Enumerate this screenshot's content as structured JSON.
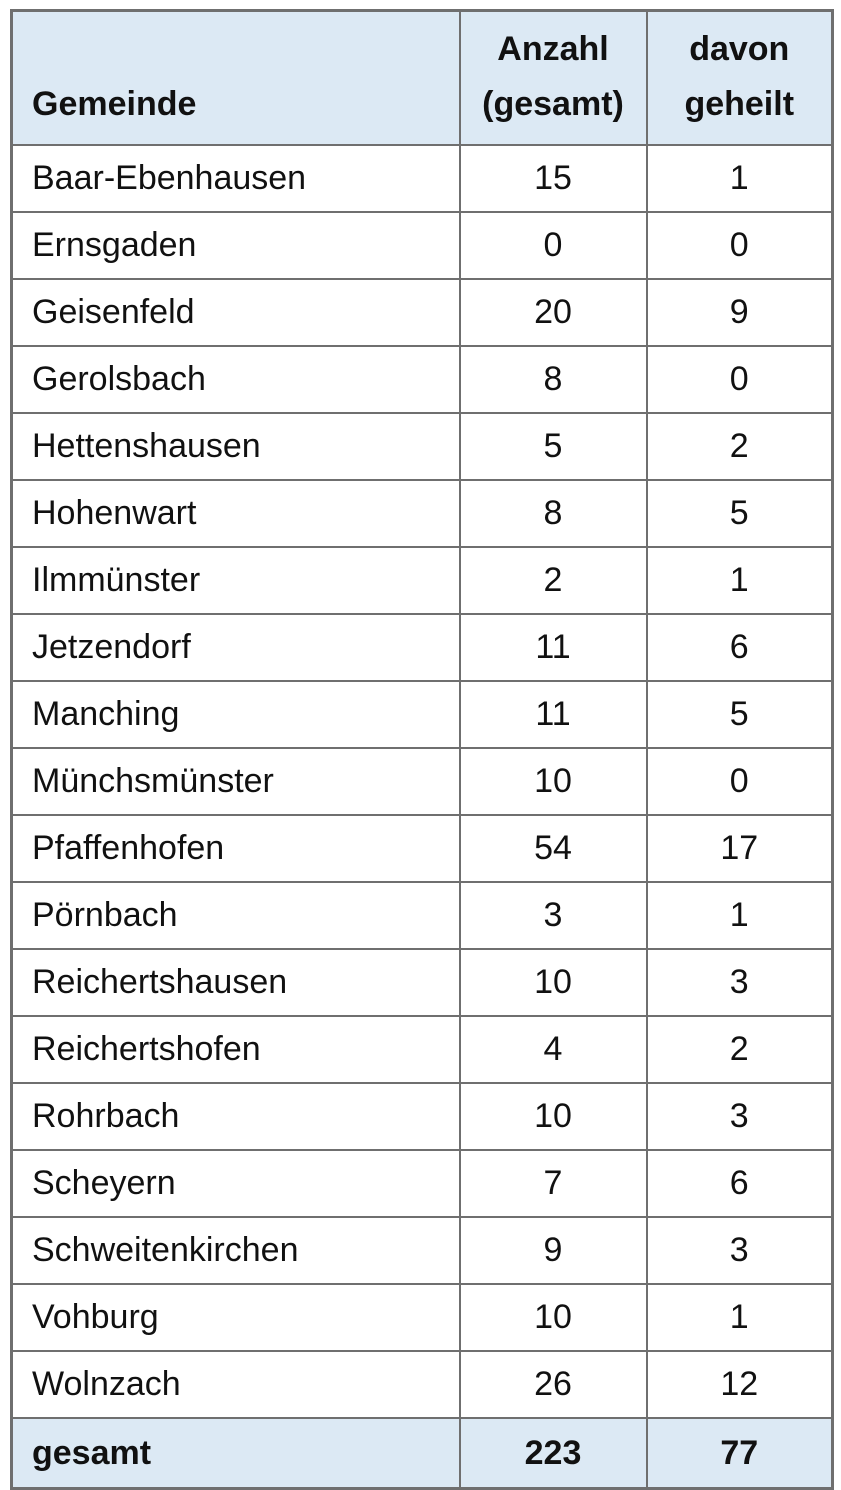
{
  "chart_data": {
    "type": "table",
    "columns": [
      {
        "key": "gemeinde",
        "lines": [
          "Gemeinde"
        ]
      },
      {
        "key": "anzahl_gesamt",
        "lines": [
          "Anzahl",
          "(gesamt)"
        ]
      },
      {
        "key": "davon_geheilt",
        "lines": [
          "davon",
          "geheilt"
        ]
      }
    ],
    "rows": [
      {
        "gemeinde": "Baar-Ebenhausen",
        "anzahl": "15",
        "geheilt": "1"
      },
      {
        "gemeinde": "Ernsgaden",
        "anzahl": "0",
        "geheilt": "0"
      },
      {
        "gemeinde": "Geisenfeld",
        "anzahl": "20",
        "geheilt": "9"
      },
      {
        "gemeinde": "Gerolsbach",
        "anzahl": "8",
        "geheilt": "0"
      },
      {
        "gemeinde": "Hettenshausen",
        "anzahl": "5",
        "geheilt": "2"
      },
      {
        "gemeinde": "Hohenwart",
        "anzahl": "8",
        "geheilt": "5"
      },
      {
        "gemeinde": "Ilmmünster",
        "anzahl": "2",
        "geheilt": "1"
      },
      {
        "gemeinde": "Jetzendorf",
        "anzahl": "11",
        "geheilt": "6"
      },
      {
        "gemeinde": "Manching",
        "anzahl": "11",
        "geheilt": "5"
      },
      {
        "gemeinde": "Münchsmünster",
        "anzahl": "10",
        "geheilt": "0"
      },
      {
        "gemeinde": "Pfaffenhofen",
        "anzahl": "54",
        "geheilt": "17"
      },
      {
        "gemeinde": "Pörnbach",
        "anzahl": "3",
        "geheilt": "1"
      },
      {
        "gemeinde": "Reichertshausen",
        "anzahl": "10",
        "geheilt": "3"
      },
      {
        "gemeinde": "Reichertshofen",
        "anzahl": "4",
        "geheilt": "2"
      },
      {
        "gemeinde": "Rohrbach",
        "anzahl": "10",
        "geheilt": "3"
      },
      {
        "gemeinde": "Scheyern",
        "anzahl": "7",
        "geheilt": "6"
      },
      {
        "gemeinde": "Schweitenkirchen",
        "anzahl": "9",
        "geheilt": "3"
      },
      {
        "gemeinde": "Vohburg",
        "anzahl": "10",
        "geheilt": "1"
      },
      {
        "gemeinde": "Wolnzach",
        "anzahl": "26",
        "geheilt": "12"
      }
    ],
    "footer": {
      "gemeinde": "gesamt",
      "anzahl": "223",
      "geheilt": "77"
    }
  },
  "colors": {
    "header_bg": "#dce9f4",
    "footer_bg": "#dce9f4",
    "border": "#6f6f6f",
    "text": "#111111",
    "page_bg": "#ffffff"
  }
}
